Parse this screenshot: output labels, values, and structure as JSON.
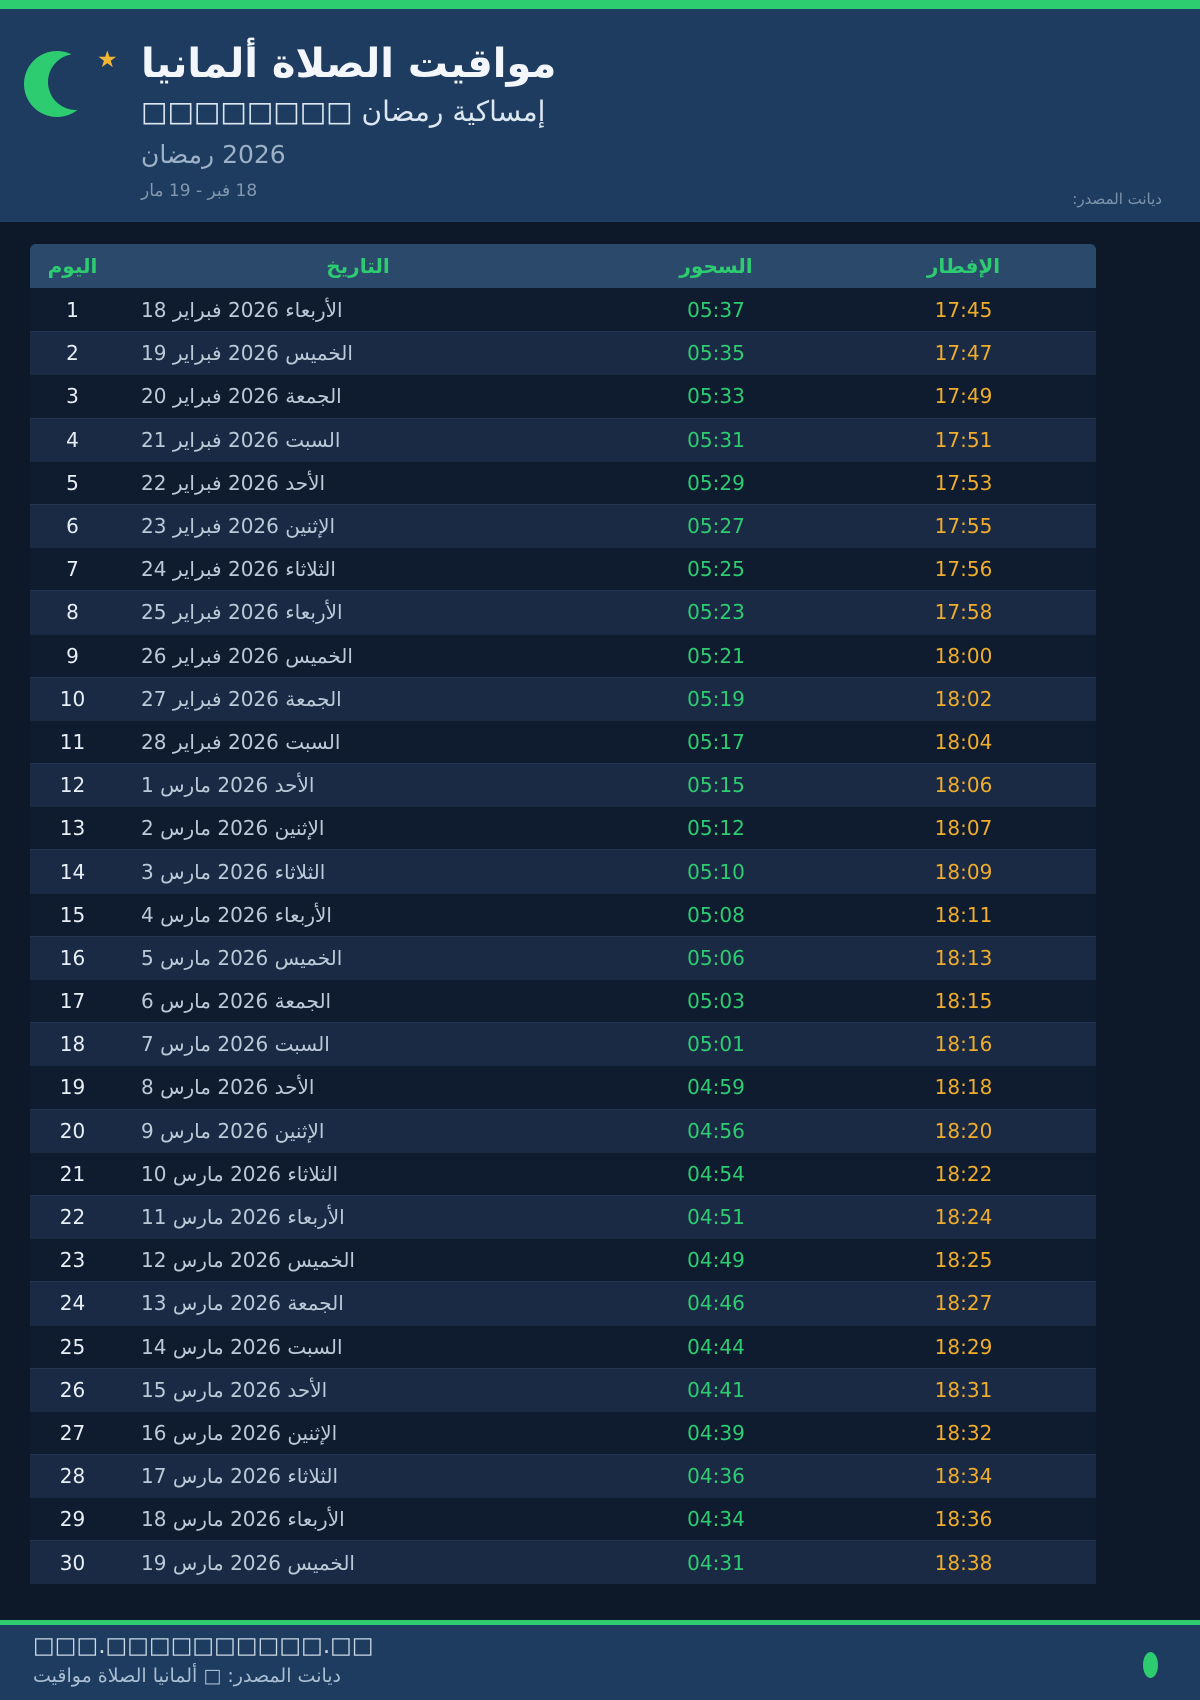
{
  "header": {
    "title": "مواقيت الصلاة ألمانيا",
    "subtitle": "إمساكية رمضان □□□□□□□□",
    "season": "رمضان 2026",
    "date_range": "18 فبر - 19 مار",
    "source": "المصدر: ديانت"
  },
  "colors": {
    "accent_green": "#2ecc71",
    "accent_amber": "#f0ad2c",
    "header_bg": "#1e3c60",
    "page_bg": "#0d1828",
    "star_gold": "#f2b635"
  },
  "icons": {
    "moon": "crescent-moon-icon",
    "star": "star-icon",
    "status_dot": "green-dot"
  },
  "table": {
    "columns": {
      "day": "اليوم",
      "date": "التاريخ",
      "suhoor": "السحور",
      "iftar": "الإفطار"
    },
    "rows": [
      {
        "day": "1",
        "date": "18 فبراير 2026 الأربعاء",
        "suhoor": "05:37",
        "iftar": "17:45"
      },
      {
        "day": "2",
        "date": "19 فبراير 2026 الخميس",
        "suhoor": "05:35",
        "iftar": "17:47"
      },
      {
        "day": "3",
        "date": "20 فبراير 2026 الجمعة",
        "suhoor": "05:33",
        "iftar": "17:49"
      },
      {
        "day": "4",
        "date": "21 فبراير 2026 السبت",
        "suhoor": "05:31",
        "iftar": "17:51"
      },
      {
        "day": "5",
        "date": "22 فبراير 2026 الأحد",
        "suhoor": "05:29",
        "iftar": "17:53"
      },
      {
        "day": "6",
        "date": "23 فبراير 2026 الإثنين",
        "suhoor": "05:27",
        "iftar": "17:55"
      },
      {
        "day": "7",
        "date": "24 فبراير 2026 الثلاثاء",
        "suhoor": "05:25",
        "iftar": "17:56"
      },
      {
        "day": "8",
        "date": "25 فبراير 2026 الأربعاء",
        "suhoor": "05:23",
        "iftar": "17:58"
      },
      {
        "day": "9",
        "date": "26 فبراير 2026 الخميس",
        "suhoor": "05:21",
        "iftar": "18:00"
      },
      {
        "day": "10",
        "date": "27 فبراير 2026 الجمعة",
        "suhoor": "05:19",
        "iftar": "18:02"
      },
      {
        "day": "11",
        "date": "28 فبراير 2026 السبت",
        "suhoor": "05:17",
        "iftar": "18:04"
      },
      {
        "day": "12",
        "date": "1 مارس 2026 الأحد",
        "suhoor": "05:15",
        "iftar": "18:06"
      },
      {
        "day": "13",
        "date": "2 مارس 2026 الإثنين",
        "suhoor": "05:12",
        "iftar": "18:07"
      },
      {
        "day": "14",
        "date": "3 مارس 2026 الثلاثاء",
        "suhoor": "05:10",
        "iftar": "18:09"
      },
      {
        "day": "15",
        "date": "4 مارس 2026 الأربعاء",
        "suhoor": "05:08",
        "iftar": "18:11"
      },
      {
        "day": "16",
        "date": "5 مارس 2026 الخميس",
        "suhoor": "05:06",
        "iftar": "18:13"
      },
      {
        "day": "17",
        "date": "6 مارس 2026 الجمعة",
        "suhoor": "05:03",
        "iftar": "18:15"
      },
      {
        "day": "18",
        "date": "7 مارس 2026 السبت",
        "suhoor": "05:01",
        "iftar": "18:16"
      },
      {
        "day": "19",
        "date": "8 مارس 2026 الأحد",
        "suhoor": "04:59",
        "iftar": "18:18"
      },
      {
        "day": "20",
        "date": "9 مارس 2026 الإثنين",
        "suhoor": "04:56",
        "iftar": "18:20"
      },
      {
        "day": "21",
        "date": "10 مارس 2026 الثلاثاء",
        "suhoor": "04:54",
        "iftar": "18:22"
      },
      {
        "day": "22",
        "date": "11 مارس 2026 الأربعاء",
        "suhoor": "04:51",
        "iftar": "18:24"
      },
      {
        "day": "23",
        "date": "12 مارس 2026 الخميس",
        "suhoor": "04:49",
        "iftar": "18:25"
      },
      {
        "day": "24",
        "date": "13 مارس 2026 الجمعة",
        "suhoor": "04:46",
        "iftar": "18:27"
      },
      {
        "day": "25",
        "date": "14 مارس 2026 السبت",
        "suhoor": "04:44",
        "iftar": "18:29"
      },
      {
        "day": "26",
        "date": "15 مارس 2026 الأحد",
        "suhoor": "04:41",
        "iftar": "18:31"
      },
      {
        "day": "27",
        "date": "16 مارس 2026 الإثنين",
        "suhoor": "04:39",
        "iftar": "18:32"
      },
      {
        "day": "28",
        "date": "17 مارس 2026 الثلاثاء",
        "suhoor": "04:36",
        "iftar": "18:34"
      },
      {
        "day": "29",
        "date": "18 مارس 2026 الأربعاء",
        "suhoor": "04:34",
        "iftar": "18:36"
      },
      {
        "day": "30",
        "date": "19 مارس 2026 الخميس",
        "suhoor": "04:31",
        "iftar": "18:38"
      }
    ]
  },
  "footer": {
    "url": "□□□.□□□□□□□□□□.□□",
    "credit": "مواقيت الصلاة ألمانيا □ المصدر: ديانت"
  }
}
